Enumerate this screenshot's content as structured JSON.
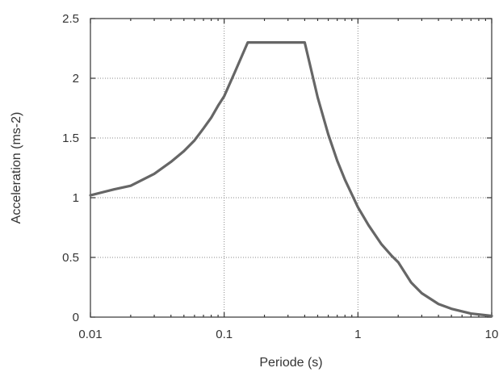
{
  "chart_data": {
    "type": "line",
    "title": "",
    "xlabel": "Periode (s)",
    "ylabel": "Acceleration (ms-2)",
    "x_scale": "log",
    "xlim": [
      0.01,
      10
    ],
    "ylim": [
      0,
      2.5
    ],
    "x_ticks": [
      0.01,
      0.1,
      1,
      10
    ],
    "x_tick_labels": [
      "0.01",
      "0.1",
      "1",
      "10"
    ],
    "y_ticks": [
      0,
      0.5,
      1,
      1.5,
      2,
      2.5
    ],
    "y_tick_labels": [
      "0",
      "0.5",
      "1",
      "1.5",
      "2",
      "2.5"
    ],
    "grid": true,
    "legend": "none",
    "series": [
      {
        "color": "#666666",
        "x": [
          0.01,
          0.015,
          0.02,
          0.03,
          0.04,
          0.05,
          0.06,
          0.07,
          0.08,
          0.09,
          0.1,
          0.12,
          0.15,
          0.2,
          0.3,
          0.4,
          0.5,
          0.6,
          0.7,
          0.8,
          1.0,
          1.2,
          1.5,
          1.8,
          2.0,
          2.5,
          3.0,
          4.0,
          5.0,
          7.0,
          10.0
        ],
        "y": [
          1.02,
          1.07,
          1.1,
          1.2,
          1.3,
          1.39,
          1.48,
          1.58,
          1.67,
          1.77,
          1.85,
          2.05,
          2.3,
          2.3,
          2.3,
          2.3,
          1.84,
          1.53,
          1.31,
          1.15,
          0.92,
          0.77,
          0.61,
          0.51,
          0.46,
          0.29,
          0.2,
          0.11,
          0.07,
          0.03,
          0.01
        ]
      }
    ]
  }
}
